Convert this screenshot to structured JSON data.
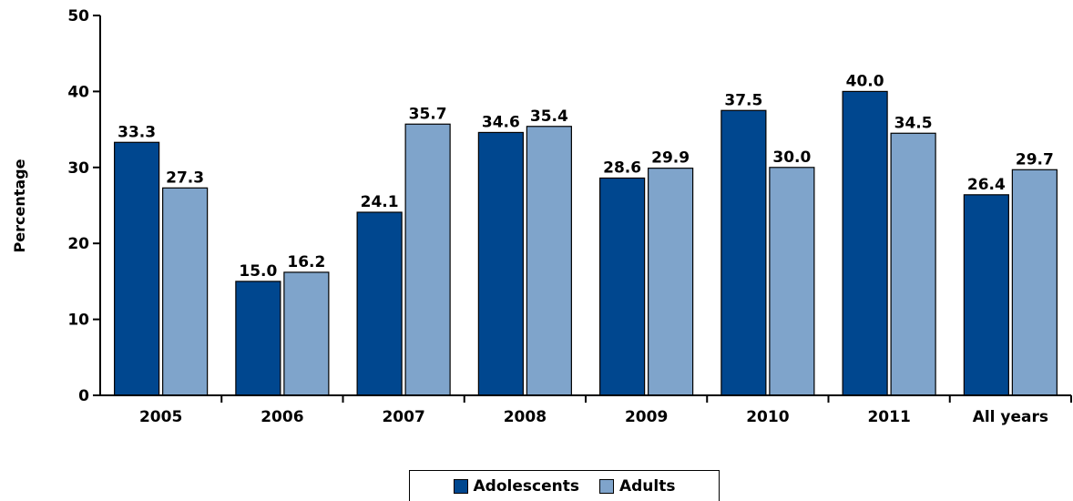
{
  "chart_data": {
    "type": "bar",
    "title": "",
    "xlabel": "",
    "ylabel": "Percentage",
    "ylim": [
      0,
      50
    ],
    "yticks": [
      "0",
      "10",
      "20",
      "30",
      "40",
      "50"
    ],
    "categories": [
      "2005",
      "2006",
      "2007",
      "2008",
      "2009",
      "2010",
      "2011",
      "All years"
    ],
    "series": [
      {
        "name": "Adolescents",
        "color": "#00478f",
        "values": [
          33.3,
          15.0,
          24.1,
          34.6,
          28.6,
          37.5,
          40.0,
          26.4
        ],
        "labels": [
          "33.3",
          "15.0",
          "24.1",
          "34.6",
          "28.6",
          "37.5",
          "40.0",
          "26.4"
        ]
      },
      {
        "name": "Adults",
        "color": "#7fa4cb",
        "values": [
          27.3,
          16.2,
          35.7,
          35.4,
          29.9,
          30.0,
          34.5,
          29.7
        ],
        "labels": [
          "27.3",
          "16.2",
          "35.7",
          "35.4",
          "29.9",
          "30.0",
          "34.5",
          "29.7"
        ]
      }
    ],
    "legend_position": "bottom-center",
    "grid": false
  }
}
